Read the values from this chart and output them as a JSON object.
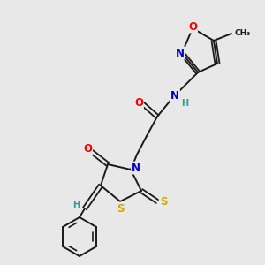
{
  "bg_color": "#e8e8e8",
  "bond_color": "#1a1a1a",
  "atom_colors": {
    "O": "#ff0000",
    "N": "#0000cc",
    "S": "#ccaa00",
    "H": "#2a9d8f",
    "C": "#1a1a1a"
  },
  "font_size_atom": 8.5,
  "font_size_small": 7.0
}
